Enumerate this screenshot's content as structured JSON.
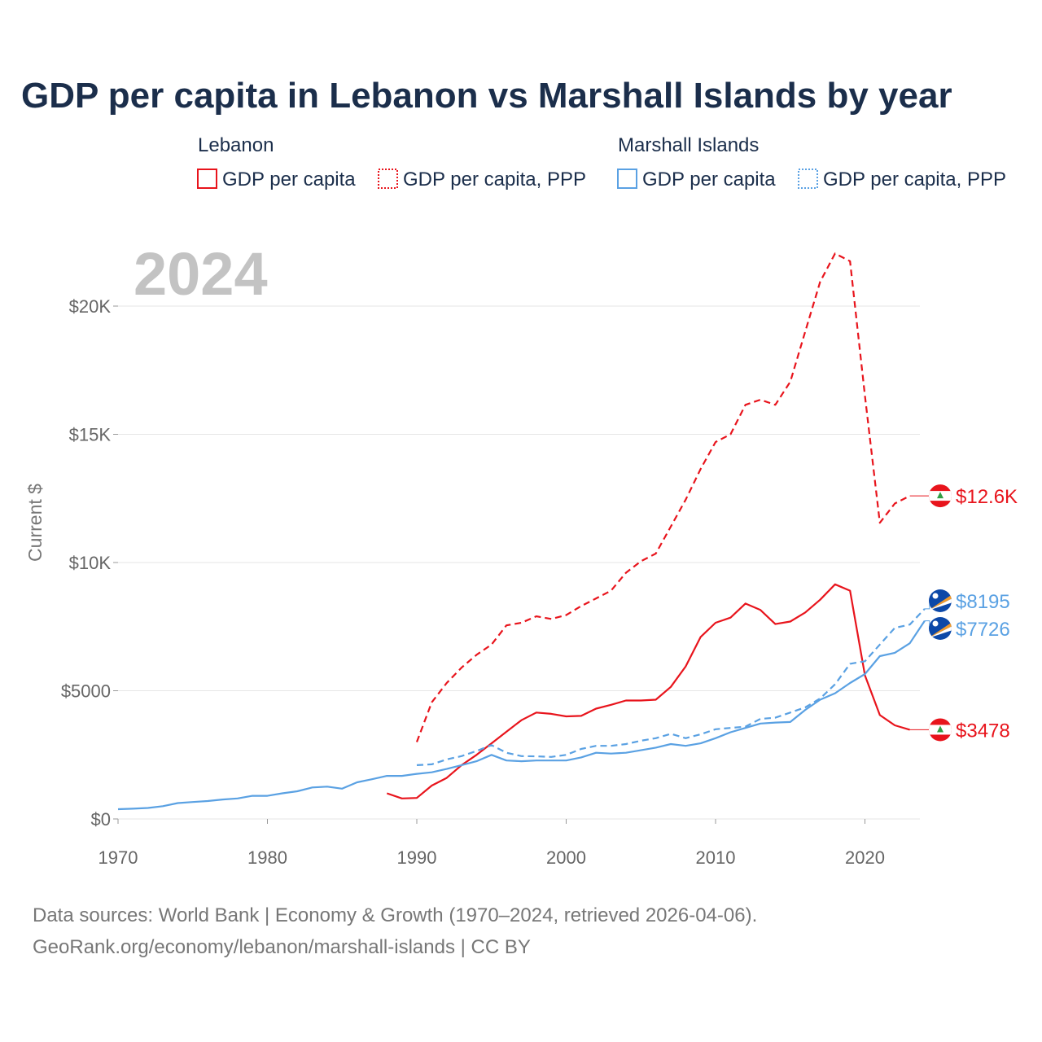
{
  "title": "GDP per capita in Lebanon vs Marshall Islands by year",
  "year_label": "2024",
  "legend": {
    "groups": [
      {
        "country": "Lebanon",
        "color": "#e8141c",
        "items": [
          {
            "label": "GDP per capita",
            "style": "solid"
          },
          {
            "label": "GDP per capita, PPP",
            "style": "dotted"
          }
        ]
      },
      {
        "country": "Marshall Islands",
        "color": "#5aa1e3",
        "items": [
          {
            "label": "GDP per capita",
            "style": "solid"
          },
          {
            "label": "GDP per capita, PPP",
            "style": "dotted"
          }
        ]
      }
    ]
  },
  "source": {
    "line1": "Data sources: World Bank | Economy & Growth (1970–2024, retrieved 2026-04-06).",
    "line2": "GeoRank.org/economy/lebanon/marshall-islands | CC BY"
  },
  "chart_data": {
    "type": "line",
    "title": "GDP per capita in Lebanon vs Marshall Islands by year",
    "xlabel": "",
    "ylabel": "Current $",
    "xlim": [
      1970,
      2024
    ],
    "ylim": [
      0,
      22000
    ],
    "x_ticks": [
      1970,
      1980,
      1990,
      2000,
      2010,
      2020
    ],
    "x_tick_labels": [
      "1970",
      "1980",
      "1990",
      "2000",
      "2010",
      "2020"
    ],
    "y_ticks": [
      0,
      5000,
      10000,
      15000,
      20000
    ],
    "y_tick_labels": [
      "$0",
      "$5000",
      "$10K",
      "$15K",
      "$20K"
    ],
    "grid": true,
    "series": [
      {
        "name": "Lebanon GDP per capita",
        "country": "Lebanon",
        "color": "#e8141c",
        "dash": "solid",
        "end_label": "$3478",
        "points": [
          [
            1988,
            1000
          ],
          [
            1989,
            800
          ],
          [
            1990,
            820
          ],
          [
            1991,
            1300
          ],
          [
            1992,
            1600
          ],
          [
            1993,
            2100
          ],
          [
            1994,
            2500
          ],
          [
            1995,
            2950
          ],
          [
            1996,
            3400
          ],
          [
            1997,
            3850
          ],
          [
            1998,
            4150
          ],
          [
            1999,
            4100
          ],
          [
            2000,
            4000
          ],
          [
            2001,
            4020
          ],
          [
            2002,
            4300
          ],
          [
            2003,
            4450
          ],
          [
            2004,
            4620
          ],
          [
            2005,
            4620
          ],
          [
            2006,
            4650
          ],
          [
            2007,
            5150
          ],
          [
            2008,
            5950
          ],
          [
            2009,
            7100
          ],
          [
            2010,
            7650
          ],
          [
            2011,
            7850
          ],
          [
            2012,
            8400
          ],
          [
            2013,
            8150
          ],
          [
            2014,
            7600
          ],
          [
            2015,
            7700
          ],
          [
            2016,
            8050
          ],
          [
            2017,
            8550
          ],
          [
            2018,
            9150
          ],
          [
            2019,
            8900
          ],
          [
            2020,
            5600
          ],
          [
            2021,
            4050
          ],
          [
            2022,
            3650
          ],
          [
            2023,
            3478
          ]
        ]
      },
      {
        "name": "Lebanon GDP per capita, PPP",
        "country": "Lebanon",
        "color": "#e8141c",
        "dash": "dashed",
        "end_label": "$12.6K",
        "points": [
          [
            1990,
            3000
          ],
          [
            1991,
            4550
          ],
          [
            1992,
            5300
          ],
          [
            1993,
            5900
          ],
          [
            1994,
            6400
          ],
          [
            1995,
            6800
          ],
          [
            1996,
            7550
          ],
          [
            1997,
            7650
          ],
          [
            1998,
            7900
          ],
          [
            1999,
            7800
          ],
          [
            2000,
            7950
          ],
          [
            2001,
            8300
          ],
          [
            2002,
            8600
          ],
          [
            2003,
            8900
          ],
          [
            2004,
            9600
          ],
          [
            2005,
            10050
          ],
          [
            2006,
            10350
          ],
          [
            2007,
            11400
          ],
          [
            2008,
            12450
          ],
          [
            2009,
            13650
          ],
          [
            2010,
            14700
          ],
          [
            2011,
            15000
          ],
          [
            2012,
            16150
          ],
          [
            2013,
            16350
          ],
          [
            2014,
            16150
          ],
          [
            2015,
            17050
          ],
          [
            2016,
            19000
          ],
          [
            2017,
            20950
          ],
          [
            2018,
            22050
          ],
          [
            2019,
            21750
          ],
          [
            2020,
            16500
          ],
          [
            2021,
            11550
          ],
          [
            2022,
            12300
          ],
          [
            2023,
            12600
          ]
        ]
      },
      {
        "name": "Marshall Islands GDP per capita",
        "country": "Marshall Islands",
        "color": "#5aa1e3",
        "dash": "solid",
        "end_label": "$7726",
        "points": [
          [
            1970,
            380
          ],
          [
            1971,
            400
          ],
          [
            1972,
            430
          ],
          [
            1973,
            500
          ],
          [
            1974,
            620
          ],
          [
            1975,
            660
          ],
          [
            1976,
            700
          ],
          [
            1977,
            760
          ],
          [
            1978,
            800
          ],
          [
            1979,
            900
          ],
          [
            1980,
            900
          ],
          [
            1981,
            1000
          ],
          [
            1982,
            1080
          ],
          [
            1983,
            1230
          ],
          [
            1984,
            1260
          ],
          [
            1985,
            1180
          ],
          [
            1986,
            1430
          ],
          [
            1987,
            1550
          ],
          [
            1988,
            1680
          ],
          [
            1989,
            1680
          ],
          [
            1990,
            1760
          ],
          [
            1991,
            1820
          ],
          [
            1992,
            1950
          ],
          [
            1993,
            2100
          ],
          [
            1994,
            2250
          ],
          [
            1995,
            2500
          ],
          [
            1996,
            2280
          ],
          [
            1997,
            2250
          ],
          [
            1998,
            2280
          ],
          [
            1999,
            2280
          ],
          [
            2000,
            2280
          ],
          [
            2001,
            2400
          ],
          [
            2002,
            2580
          ],
          [
            2003,
            2550
          ],
          [
            2004,
            2580
          ],
          [
            2005,
            2680
          ],
          [
            2006,
            2780
          ],
          [
            2007,
            2920
          ],
          [
            2008,
            2850
          ],
          [
            2009,
            2950
          ],
          [
            2010,
            3150
          ],
          [
            2011,
            3380
          ],
          [
            2012,
            3550
          ],
          [
            2013,
            3720
          ],
          [
            2014,
            3760
          ],
          [
            2015,
            3780
          ],
          [
            2016,
            4250
          ],
          [
            2017,
            4650
          ],
          [
            2018,
            4900
          ],
          [
            2019,
            5300
          ],
          [
            2020,
            5650
          ],
          [
            2021,
            6350
          ],
          [
            2022,
            6480
          ],
          [
            2023,
            6850
          ],
          [
            2024,
            7726
          ]
        ]
      },
      {
        "name": "Marshall Islands GDP per capita, PPP",
        "country": "Marshall Islands",
        "color": "#5aa1e3",
        "dash": "dashed",
        "end_label": "$8195",
        "points": [
          [
            1990,
            2100
          ],
          [
            1991,
            2130
          ],
          [
            1992,
            2320
          ],
          [
            1993,
            2450
          ],
          [
            1994,
            2650
          ],
          [
            1995,
            2880
          ],
          [
            1996,
            2580
          ],
          [
            1997,
            2450
          ],
          [
            1998,
            2440
          ],
          [
            1999,
            2420
          ],
          [
            2000,
            2500
          ],
          [
            2001,
            2730
          ],
          [
            2002,
            2850
          ],
          [
            2003,
            2850
          ],
          [
            2004,
            2920
          ],
          [
            2005,
            3050
          ],
          [
            2006,
            3150
          ],
          [
            2007,
            3320
          ],
          [
            2008,
            3150
          ],
          [
            2009,
            3300
          ],
          [
            2010,
            3500
          ],
          [
            2011,
            3550
          ],
          [
            2012,
            3600
          ],
          [
            2013,
            3900
          ],
          [
            2014,
            3950
          ],
          [
            2015,
            4150
          ],
          [
            2016,
            4350
          ],
          [
            2017,
            4700
          ],
          [
            2018,
            5250
          ],
          [
            2019,
            6050
          ],
          [
            2020,
            6150
          ],
          [
            2021,
            6800
          ],
          [
            2022,
            7450
          ],
          [
            2023,
            7580
          ],
          [
            2024,
            8195
          ]
        ]
      }
    ]
  }
}
